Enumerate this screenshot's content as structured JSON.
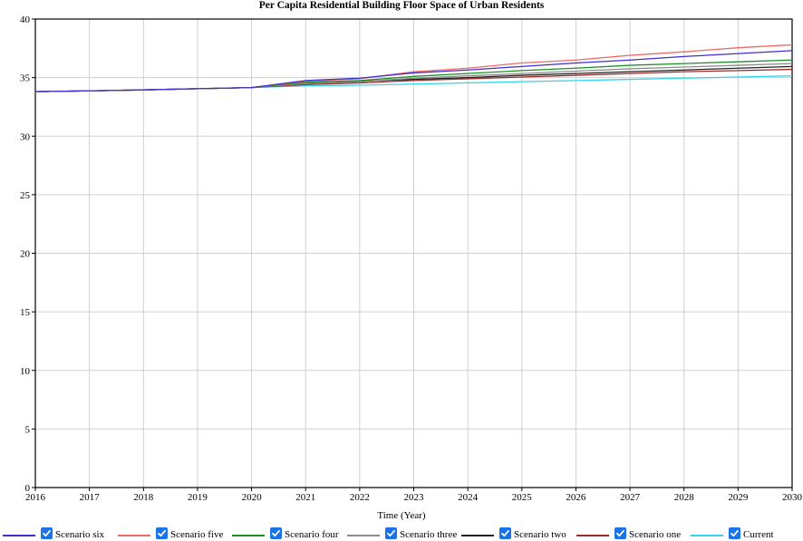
{
  "chart_data": {
    "type": "line",
    "title": "Per Capita Residential Building Floor Space of Urban Residents",
    "xlabel": "Time (Year)",
    "ylabel": "",
    "x": [
      2016,
      2017,
      2018,
      2019,
      2020,
      2021,
      2022,
      2023,
      2024,
      2025,
      2026,
      2027,
      2028,
      2029,
      2030
    ],
    "ylim": [
      0,
      40
    ],
    "yticks": [
      0,
      5,
      10,
      15,
      20,
      25,
      30,
      35,
      40
    ],
    "grid": true,
    "legend_position": "bottom",
    "series": [
      {
        "name": "Scenario six",
        "color": "#3f2fd0",
        "values": [
          33.8,
          33.87,
          33.95,
          34.05,
          34.15,
          34.75,
          34.95,
          35.4,
          35.65,
          35.95,
          36.25,
          36.5,
          36.8,
          37.05,
          37.3
        ]
      },
      {
        "name": "Scenario five",
        "color": "#ef6b67",
        "values": [
          33.8,
          33.87,
          33.95,
          34.05,
          34.15,
          34.7,
          34.9,
          35.5,
          35.8,
          36.25,
          36.5,
          36.9,
          37.2,
          37.55,
          37.8
        ]
      },
      {
        "name": "Scenario four",
        "color": "#1f8f2a",
        "values": [
          33.8,
          33.87,
          33.95,
          34.05,
          34.15,
          34.6,
          34.75,
          35.1,
          35.35,
          35.6,
          35.8,
          36.05,
          36.2,
          36.35,
          36.5
        ]
      },
      {
        "name": "Scenario three",
        "color": "#8c8c8c",
        "values": [
          33.8,
          33.87,
          33.95,
          34.05,
          34.15,
          34.5,
          34.65,
          34.95,
          35.15,
          35.35,
          35.55,
          35.75,
          35.9,
          36.05,
          36.2
        ]
      },
      {
        "name": "Scenario two",
        "color": "#222222",
        "values": [
          33.8,
          33.87,
          33.95,
          34.05,
          34.15,
          34.55,
          34.7,
          34.85,
          35.0,
          35.2,
          35.35,
          35.5,
          35.65,
          35.8,
          35.95
        ]
      },
      {
        "name": "Scenario one",
        "color": "#9b2b2b",
        "values": [
          33.8,
          33.87,
          33.95,
          34.05,
          34.15,
          34.4,
          34.55,
          34.75,
          34.9,
          35.05,
          35.2,
          35.35,
          35.5,
          35.6,
          35.7
        ]
      },
      {
        "name": "Current",
        "color": "#34d3f0",
        "values": [
          33.8,
          33.87,
          33.95,
          34.05,
          34.15,
          34.3,
          34.35,
          34.45,
          34.55,
          34.65,
          34.75,
          34.85,
          34.95,
          35.05,
          35.15
        ]
      }
    ]
  },
  "legend": {
    "checked": true,
    "checkbox_color": "#1a73e8"
  }
}
